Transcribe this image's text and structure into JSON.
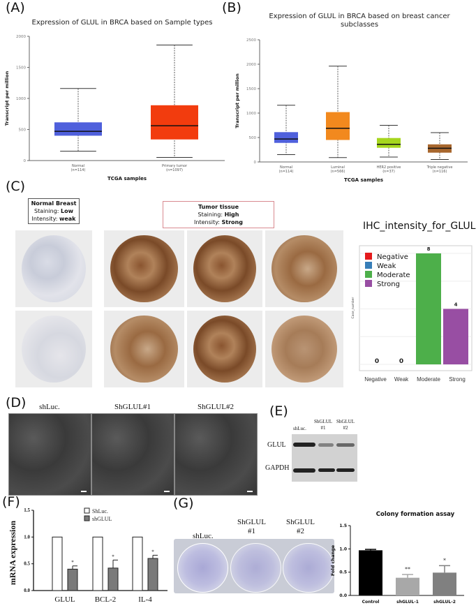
{
  "panel_labels": {
    "a": "(A)",
    "b": "(B)",
    "c": "(C)",
    "d": "(D)",
    "e": "(E)",
    "f": "(F)",
    "g": "(G)"
  },
  "chart_data": [
    {
      "id": "A",
      "type": "box",
      "title": "Expression of GLUL in BRCA based on Sample types",
      "xlabel": "TCGA samples",
      "ylabel": "Transcript per million",
      "ylim": [
        0,
        2000
      ],
      "yticks": [
        "0",
        "500",
        "1000",
        "1500",
        "2000"
      ],
      "categories": [
        {
          "name": "Normal",
          "n": "(n=114)"
        },
        {
          "name": "Primary tumor",
          "n": "(n=1097)"
        }
      ],
      "boxes": [
        {
          "min": 150,
          "q1": 400,
          "median": 470,
          "q3": 615,
          "max": 1160,
          "color": "#4f60dc"
        },
        {
          "min": 50,
          "q1": 340,
          "median": 560,
          "q3": 890,
          "max": 1860,
          "color": "#f23c0e"
        }
      ]
    },
    {
      "id": "B",
      "type": "box",
      "title_lines": [
        "Expression of GLUL in BRCA based on breast cancer",
        "subclasses"
      ],
      "xlabel": "TCGA samples",
      "ylabel": "Transcript per million",
      "ylim": [
        0,
        2500
      ],
      "yticks": [
        "0",
        "500",
        "1000",
        "1500",
        "2000",
        "2500"
      ],
      "categories": [
        {
          "name": "Normal",
          "n": "(n=114)"
        },
        {
          "name": "Luminal",
          "n": "(n=566)"
        },
        {
          "name": "HER2 positive",
          "n": "(n=37)"
        },
        {
          "name": "Triple negative",
          "n": "(n=116)"
        }
      ],
      "boxes": [
        {
          "min": 150,
          "q1": 390,
          "median": 470,
          "q3": 610,
          "max": 1160,
          "color": "#4f60dc"
        },
        {
          "min": 90,
          "q1": 450,
          "median": 690,
          "q3": 1020,
          "max": 1960,
          "color": "#f2891e"
        },
        {
          "min": 100,
          "q1": 290,
          "median": 360,
          "q3": 490,
          "max": 750,
          "color": "#a6d61e"
        },
        {
          "min": 50,
          "q1": 190,
          "median": 280,
          "q3": 360,
          "max": 600,
          "color": "#a8672e"
        }
      ]
    },
    {
      "id": "IHC",
      "type": "bar",
      "title": "IHC_intensity_for_GLUL",
      "ylabel": "Case_number",
      "ylim": [
        0,
        8
      ],
      "grid": true,
      "legend": "top-left",
      "categories": [
        "Negative",
        "Weak",
        "Moderate",
        "Strong"
      ],
      "values": [
        0,
        0,
        8,
        4
      ],
      "data_labels": [
        "0",
        "0",
        "8",
        "4"
      ],
      "colors": [
        "#e41a1c",
        "#377eb8",
        "#4daf4a",
        "#984ea3"
      ],
      "legend_entries": [
        "Negative",
        "Weak",
        "Moderate",
        "Strong"
      ]
    },
    {
      "id": "F",
      "type": "bar",
      "ylabel": "mRNA expression",
      "ylim": [
        0,
        1.5
      ],
      "yticks": [
        "0.0",
        "0.5",
        "1.0",
        "1.5"
      ],
      "categories": [
        "GLUL",
        "BCL-2",
        "IL-4"
      ],
      "series": [
        {
          "name": "ShLuc.",
          "values": [
            1,
            1,
            1
          ],
          "errors": [
            0,
            0,
            0
          ],
          "color": "#ffffff"
        },
        {
          "name": "shGLUL",
          "values": [
            0.4,
            0.42,
            0.6
          ],
          "errors": [
            0.06,
            0.15,
            0.06
          ],
          "color": "#7a7a7a",
          "significance": [
            "*",
            "*",
            "*"
          ]
        }
      ],
      "legend": "top"
    },
    {
      "id": "G",
      "type": "bar",
      "title": "Colony formation assay",
      "ylabel": "Fold change",
      "ylim": [
        0,
        1.5
      ],
      "yticks": [
        "0.0",
        "0.5",
        "1.0",
        "1.5"
      ],
      "categories": [
        "Control",
        "shGLUL-1",
        "shGLUL-2"
      ],
      "values": [
        0.97,
        0.38,
        0.49
      ],
      "errors": [
        0.02,
        0.07,
        0.15
      ],
      "significance": [
        "",
        "**",
        "*"
      ],
      "colors": [
        "#000000",
        "#a8a8a8",
        "#808080"
      ]
    }
  ],
  "panel_c": {
    "normal_box": {
      "title": "Normal Breast",
      "staining_label": "Staining:",
      "staining": "Low",
      "intensity_label": "Intensity:",
      "intensity": "weak"
    },
    "tumor_box": {
      "title": "Tumor tissue",
      "staining_label": "Staining:",
      "staining": "High",
      "intensity_label": "Intensity:",
      "intensity": "Strong"
    }
  },
  "panel_d": {
    "labels": [
      "shLuc.",
      "ShGLUL#1",
      "ShGLUL#2"
    ]
  },
  "panel_e": {
    "lanes": [
      "shLuc.",
      "ShGLUL\n#1",
      "ShGLUL\n#2"
    ],
    "lane1": "shLuc.",
    "lane2a": "ShGLUL",
    "lane2b": "#1",
    "lane3a": "ShGLUL",
    "lane3b": "#2",
    "rows": [
      "GLUL",
      "GAPDH"
    ]
  },
  "panel_g": {
    "lane1": "shLuc.",
    "lane2a": "ShGLUL",
    "lane2b": "#1",
    "lane3a": "ShGLUL",
    "lane3b": "#2"
  }
}
